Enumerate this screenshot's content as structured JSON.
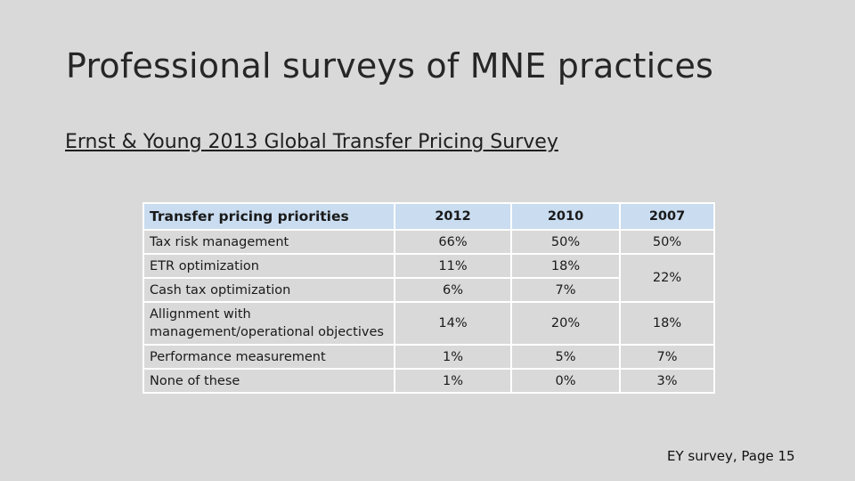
{
  "slide": {
    "title": "Professional surveys of MNE practices",
    "subtitle": "Ernst & Young 2013 Global Transfer Pricing Survey",
    "source": "EY survey, Page 15"
  },
  "table": {
    "headers": [
      "Transfer pricing priorities",
      "2012",
      "2010",
      "2007"
    ],
    "rows": [
      {
        "label": "Tax risk management",
        "y2012": "66%",
        "y2010": "50%",
        "y2007": "50%"
      },
      {
        "label": "ETR optimization",
        "y2012": "11%",
        "y2010": "18%"
      },
      {
        "label": "Cash tax optimization",
        "y2012": "6%",
        "y2010": "7%"
      },
      {
        "label_line1": "Allignment with",
        "label_line2": "management/operational objectives",
        "y2012": "14%",
        "y2010": "20%",
        "y2007": "18%"
      },
      {
        "label": "Performance measurement",
        "y2012": "1%",
        "y2010": "5%",
        "y2007": "7%"
      },
      {
        "label": "None of these",
        "y2012": "1%",
        "y2010": "0%",
        "y2007": "3%"
      }
    ],
    "merged_2007_etr_cash": "22%"
  }
}
